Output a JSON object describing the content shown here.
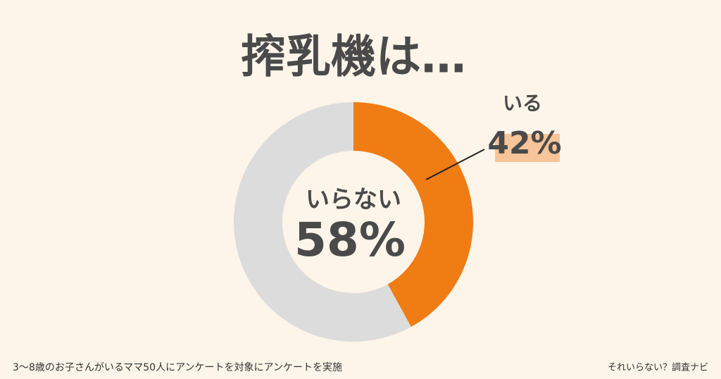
{
  "chart_data": {
    "type": "donut",
    "title": "搾乳機は…",
    "categories": [
      "いる",
      "いらない"
    ],
    "values": [
      42,
      58
    ],
    "value_labels": [
      "42%",
      "58%"
    ],
    "colors": [
      "#f07c14",
      "#dcdcdc"
    ],
    "footnote": "3〜8歳のお子さんがいるママ50人にアンケートを対象にアンケートを実施",
    "source": "それいらない？調査ナビ"
  }
}
